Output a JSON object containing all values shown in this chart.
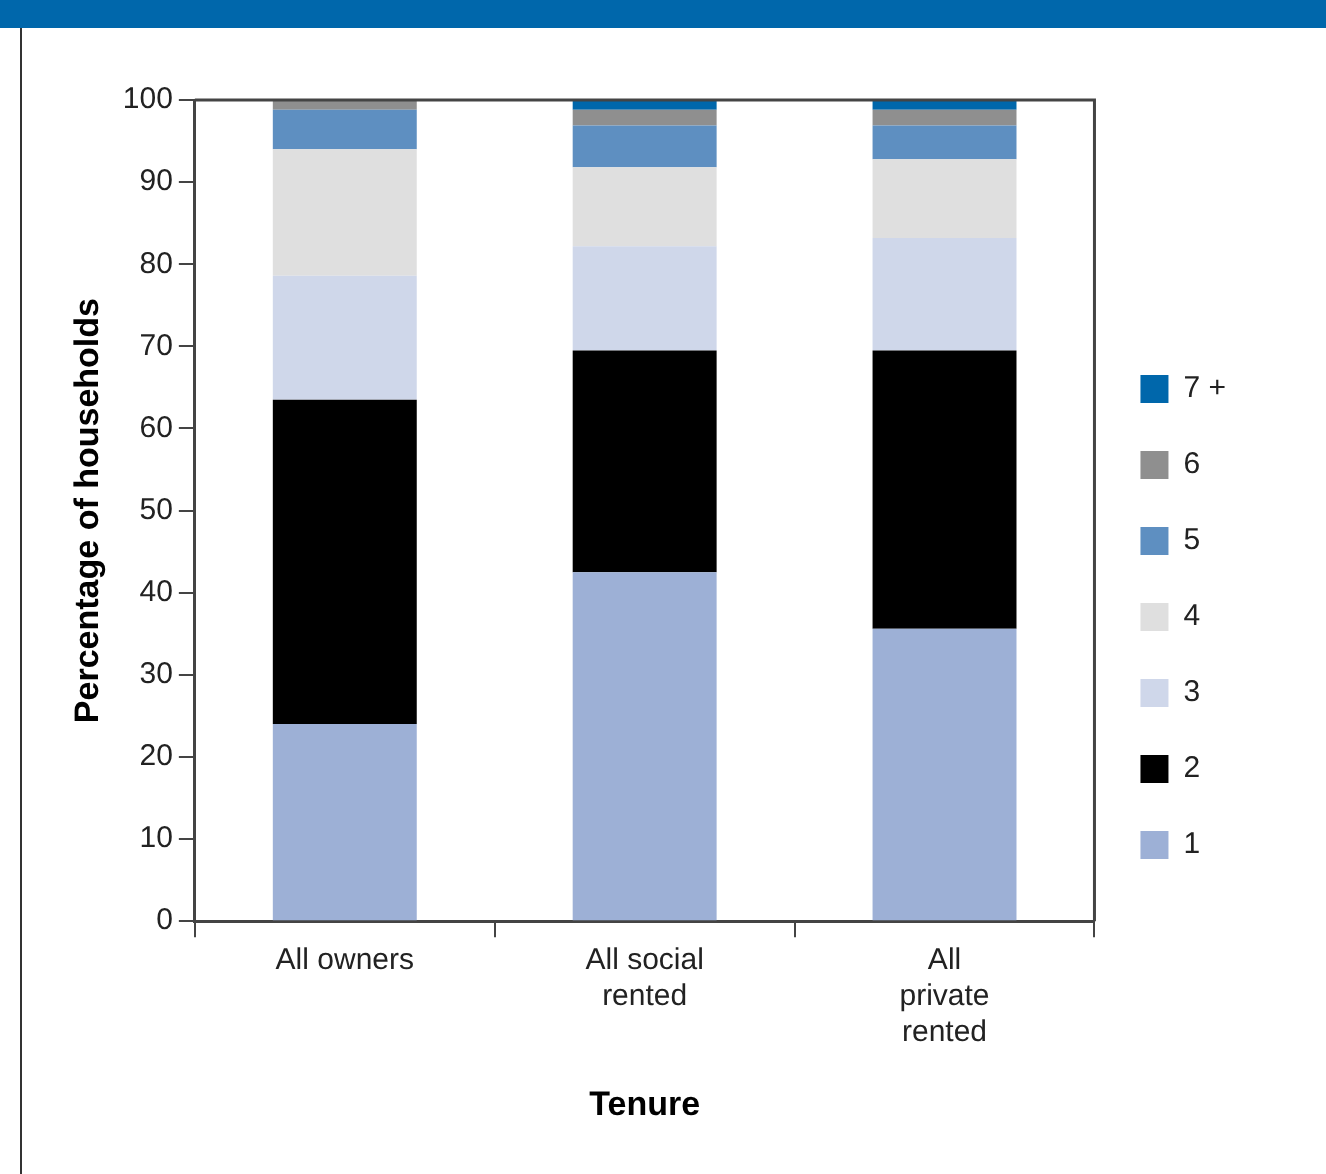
{
  "chart_data": {
    "type": "bar",
    "stacked": true,
    "categories": [
      "All owners",
      "All social rented",
      "All private rented"
    ],
    "xlabel": "Tenure",
    "ylabel": "Percentage of households",
    "ylim": [
      0,
      100
    ],
    "yticks": [
      0,
      10,
      20,
      30,
      40,
      50,
      60,
      70,
      80,
      90,
      100
    ],
    "grid": false,
    "legend": "right",
    "series": [
      {
        "name": "1",
        "color": "#9db0d6",
        "values": [
          24.0,
          42.5,
          35.6
        ]
      },
      {
        "name": "2",
        "color": "#000000",
        "values": [
          39.5,
          27.0,
          33.9
        ]
      },
      {
        "name": "3",
        "color": "#cfd7ea",
        "values": [
          15.1,
          12.7,
          13.7
        ]
      },
      {
        "name": "4",
        "color": "#dfdfdf",
        "values": [
          15.4,
          9.6,
          9.6
        ]
      },
      {
        "name": "5",
        "color": "#5e8fc1",
        "values": [
          4.8,
          5.1,
          4.1
        ]
      },
      {
        "name": "6",
        "color": "#8f8f8f",
        "values": [
          1.2,
          1.9,
          1.9
        ]
      },
      {
        "name": "7 +",
        "color": "#0067ab",
        "values": [
          0,
          1.2,
          1.2
        ]
      }
    ]
  }
}
